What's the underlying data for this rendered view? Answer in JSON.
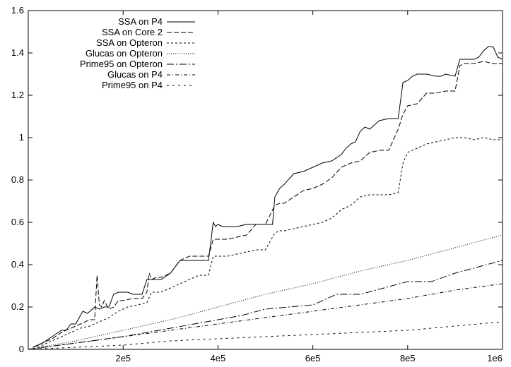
{
  "chart_data": {
    "type": "line",
    "title": "",
    "xlabel": "",
    "ylabel": "",
    "xlim": [
      0,
      1000000
    ],
    "ylim": [
      0,
      1.6
    ],
    "grid": false,
    "legend_position": "top-left",
    "x_ticks": [
      {
        "value": 200000,
        "label": "2e5"
      },
      {
        "value": 400000,
        "label": "4e5"
      },
      {
        "value": 600000,
        "label": "6e5"
      },
      {
        "value": 800000,
        "label": "8e5"
      },
      {
        "value": 1000000,
        "label": "1e6"
      }
    ],
    "y_ticks": [
      {
        "value": 0,
        "label": "0"
      },
      {
        "value": 0.2,
        "label": "0.2"
      },
      {
        "value": 0.4,
        "label": "0.4"
      },
      {
        "value": 0.6,
        "label": "0.6"
      },
      {
        "value": 0.8,
        "label": "0.8"
      },
      {
        "value": 1.0,
        "label": "1"
      },
      {
        "value": 1.2,
        "label": "1.2"
      },
      {
        "value": 1.4,
        "label": "1.4"
      },
      {
        "value": 1.6,
        "label": "1.6"
      }
    ],
    "series": [
      {
        "name": "SSA on P4",
        "dash": "",
        "x": [
          10000,
          30000,
          50000,
          70000,
          80000,
          90000,
          100000,
          115000,
          125000,
          130000,
          140000,
          150000,
          160000,
          170000,
          180000,
          190000,
          200000,
          210000,
          220000,
          240000,
          250000,
          260000,
          270000,
          280000,
          300000,
          320000,
          340000,
          360000,
          380000,
          390000,
          395000,
          400000,
          410000,
          420000,
          440000,
          460000,
          480000,
          500000,
          510000,
          515000,
          520000,
          530000,
          540000,
          560000,
          580000,
          600000,
          620000,
          640000,
          660000,
          670000,
          680000,
          690000,
          700000,
          710000,
          720000,
          740000,
          760000,
          770000,
          780000,
          790000,
          800000,
          810000,
          820000,
          840000,
          860000,
          870000,
          880000,
          900000,
          910000,
          920000,
          930000,
          940000,
          950000,
          960000,
          970000,
          980000,
          990000,
          1000000
        ],
        "y": [
          0.01,
          0.03,
          0.06,
          0.09,
          0.09,
          0.12,
          0.12,
          0.18,
          0.17,
          0.18,
          0.2,
          0.19,
          0.2,
          0.2,
          0.26,
          0.27,
          0.27,
          0.27,
          0.26,
          0.26,
          0.33,
          0.33,
          0.33,
          0.33,
          0.36,
          0.42,
          0.42,
          0.42,
          0.42,
          0.6,
          0.58,
          0.59,
          0.58,
          0.58,
          0.58,
          0.59,
          0.59,
          0.59,
          0.59,
          0.59,
          0.72,
          0.76,
          0.78,
          0.83,
          0.84,
          0.86,
          0.88,
          0.89,
          0.92,
          0.95,
          0.97,
          0.98,
          1.03,
          1.05,
          1.04,
          1.08,
          1.09,
          1.09,
          1.09,
          1.26,
          1.27,
          1.29,
          1.3,
          1.3,
          1.29,
          1.29,
          1.3,
          1.29,
          1.37,
          1.37,
          1.37,
          1.37,
          1.38,
          1.41,
          1.43,
          1.43,
          1.38,
          1.37
        ]
      },
      {
        "name": "SSA on Core 2",
        "dash": "7,3",
        "x": [
          10000,
          30000,
          50000,
          70000,
          90000,
          110000,
          130000,
          140000,
          145000,
          150000,
          155000,
          160000,
          170000,
          180000,
          190000,
          200000,
          220000,
          240000,
          250000,
          255000,
          260000,
          270000,
          280000,
          300000,
          320000,
          340000,
          360000,
          380000,
          390000,
          400000,
          420000,
          440000,
          460000,
          480000,
          500000,
          520000,
          530000,
          540000,
          560000,
          580000,
          600000,
          620000,
          640000,
          660000,
          680000,
          700000,
          720000,
          740000,
          760000,
          780000,
          790000,
          800000,
          820000,
          840000,
          860000,
          880000,
          900000,
          910000,
          920000,
          940000,
          960000,
          980000,
          1000000
        ],
        "y": [
          0.01,
          0.03,
          0.05,
          0.08,
          0.1,
          0.12,
          0.14,
          0.14,
          0.35,
          0.21,
          0.2,
          0.23,
          0.19,
          0.2,
          0.23,
          0.23,
          0.24,
          0.24,
          0.27,
          0.36,
          0.33,
          0.34,
          0.34,
          0.36,
          0.42,
          0.44,
          0.44,
          0.44,
          0.52,
          0.52,
          0.52,
          0.53,
          0.54,
          0.59,
          0.59,
          0.68,
          0.69,
          0.69,
          0.72,
          0.75,
          0.76,
          0.78,
          0.81,
          0.86,
          0.88,
          0.89,
          0.93,
          0.94,
          0.94,
          1.04,
          1.11,
          1.15,
          1.16,
          1.21,
          1.21,
          1.22,
          1.22,
          1.34,
          1.35,
          1.35,
          1.36,
          1.35,
          1.35
        ]
      },
      {
        "name": "SSA on Opteron",
        "dash": "3,3",
        "x": [
          10000,
          30000,
          50000,
          70000,
          90000,
          110000,
          130000,
          150000,
          170000,
          190000,
          210000,
          230000,
          250000,
          260000,
          270000,
          280000,
          300000,
          320000,
          340000,
          360000,
          380000,
          390000,
          400000,
          420000,
          440000,
          460000,
          480000,
          500000,
          520000,
          530000,
          540000,
          560000,
          580000,
          600000,
          620000,
          640000,
          660000,
          680000,
          700000,
          720000,
          740000,
          760000,
          780000,
          790000,
          800000,
          820000,
          840000,
          860000,
          880000,
          900000,
          920000,
          940000,
          960000,
          980000,
          1000000
        ],
        "y": [
          0.01,
          0.02,
          0.04,
          0.06,
          0.08,
          0.1,
          0.11,
          0.13,
          0.15,
          0.18,
          0.2,
          0.21,
          0.22,
          0.27,
          0.27,
          0.27,
          0.29,
          0.31,
          0.33,
          0.35,
          0.35,
          0.44,
          0.44,
          0.44,
          0.45,
          0.46,
          0.47,
          0.47,
          0.55,
          0.56,
          0.56,
          0.57,
          0.58,
          0.59,
          0.6,
          0.62,
          0.66,
          0.68,
          0.72,
          0.73,
          0.73,
          0.73,
          0.74,
          0.88,
          0.93,
          0.95,
          0.97,
          0.98,
          0.99,
          1.0,
          1.0,
          0.99,
          1.0,
          0.99,
          0.99
        ]
      },
      {
        "name": "Glucas on Opteron",
        "dash": "1,2",
        "x": [
          0,
          100000,
          200000,
          300000,
          400000,
          500000,
          600000,
          700000,
          800000,
          900000,
          1000000
        ],
        "y": [
          0,
          0.04,
          0.09,
          0.14,
          0.2,
          0.26,
          0.31,
          0.37,
          0.42,
          0.48,
          0.54
        ]
      },
      {
        "name": "Prime95 on Opteron",
        "dash": "10,3,2,3",
        "x": [
          0,
          100000,
          200000,
          300000,
          350000,
          400000,
          450000,
          500000,
          550000,
          600000,
          650000,
          700000,
          750000,
          800000,
          850000,
          900000,
          950000,
          1000000
        ],
        "y": [
          0,
          0.03,
          0.06,
          0.1,
          0.12,
          0.14,
          0.16,
          0.19,
          0.2,
          0.21,
          0.26,
          0.26,
          0.29,
          0.32,
          0.32,
          0.36,
          0.39,
          0.42
        ]
      },
      {
        "name": "Glucas on P4",
        "dash": "5,3,1,3",
        "x": [
          0,
          100000,
          200000,
          300000,
          400000,
          500000,
          600000,
          700000,
          800000,
          900000,
          1000000
        ],
        "y": [
          0,
          0.03,
          0.06,
          0.09,
          0.12,
          0.15,
          0.18,
          0.21,
          0.24,
          0.28,
          0.31
        ]
      },
      {
        "name": "Prime95 on P4",
        "dash": "3,5",
        "x": [
          0,
          100000,
          200000,
          300000,
          400000,
          500000,
          600000,
          700000,
          800000,
          900000,
          1000000
        ],
        "y": [
          0,
          0.01,
          0.02,
          0.04,
          0.05,
          0.06,
          0.07,
          0.08,
          0.09,
          0.11,
          0.13
        ]
      }
    ]
  }
}
